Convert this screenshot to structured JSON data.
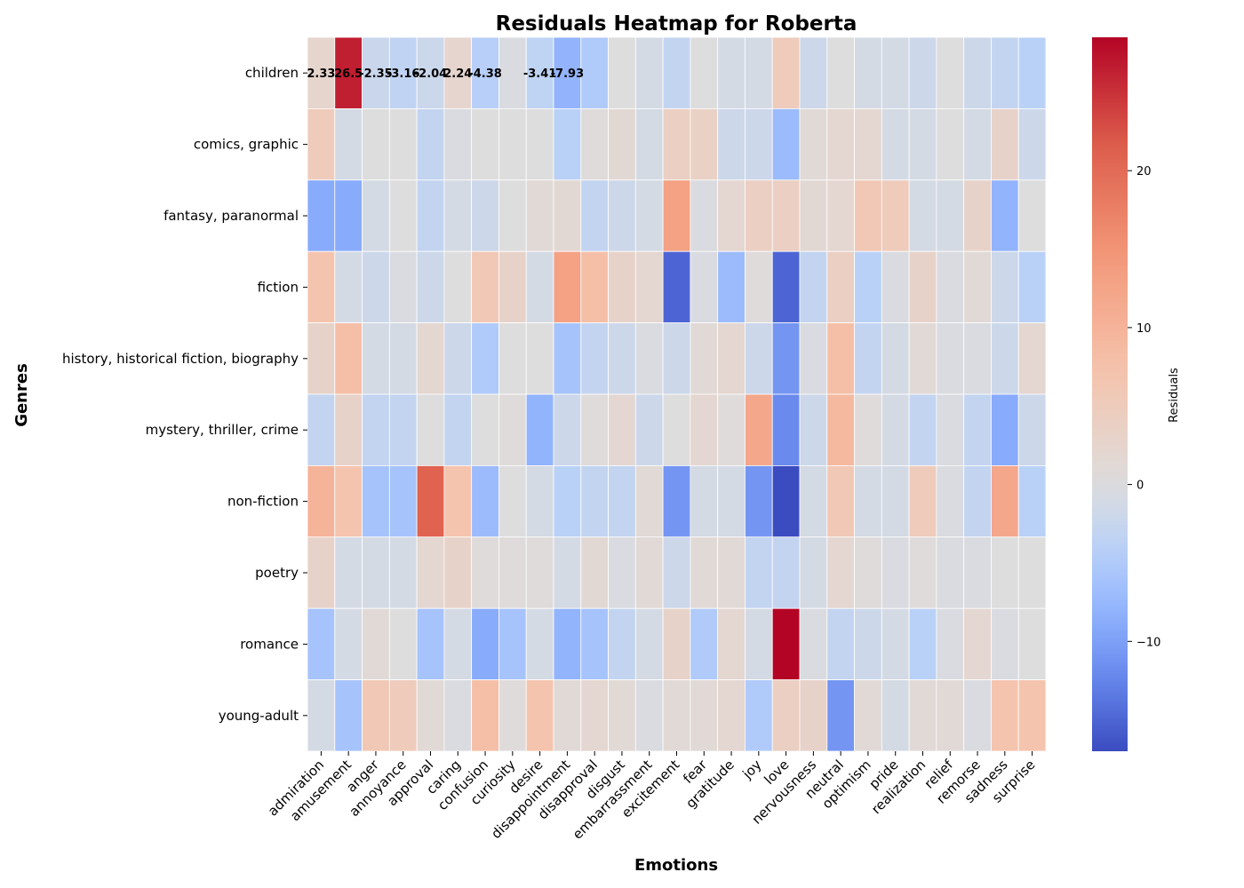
{
  "chart_data": {
    "type": "heatmap",
    "title": "Residuals Heatmap for Roberta",
    "xlabel": "Emotions",
    "ylabel": "Genres",
    "colorbar_label": "Residuals",
    "colormap": "coolwarm",
    "color_range": [
      -17,
      28.5
    ],
    "colorbar_ticks": [
      -10,
      0,
      10,
      20
    ],
    "columns": [
      "admiration",
      "amusement",
      "anger",
      "annoyance",
      "approval",
      "caring",
      "confusion",
      "curiosity",
      "desire",
      "disappointment",
      "disapproval",
      "disgust",
      "embarrassment",
      "excitement",
      "fear",
      "gratitude",
      "joy",
      "love",
      "nervousness",
      "neutral",
      "optimism",
      "pride",
      "realization",
      "relief",
      "remorse",
      "sadness",
      "surprise"
    ],
    "rows": [
      "children",
      "comics, graphic",
      "fantasy, paranormal",
      "fiction",
      "history, historical fiction, biography",
      "mystery, thriller, crime",
      "non-fiction",
      "poetry",
      "romance",
      "young-adult"
    ],
    "values": [
      [
        2.33,
        26.5,
        -2.35,
        -3.16,
        -2.04,
        2.24,
        -4.38,
        -0.5,
        -3.41,
        -7.93,
        -5,
        0,
        -1,
        -3,
        0,
        -1,
        -1,
        5,
        -2,
        0,
        -1,
        -1,
        -2,
        0,
        -2,
        -3,
        -4
      ],
      [
        5,
        -1,
        0,
        0,
        -3,
        -0.5,
        0,
        0,
        0,
        -4,
        0.5,
        1.5,
        -1,
        4,
        3.5,
        -2,
        -2,
        -7,
        1,
        2,
        2,
        -1,
        -1,
        0,
        -1,
        3,
        -2
      ],
      [
        -9,
        -9,
        -1,
        0,
        -3,
        -1,
        -2,
        0,
        1,
        1.5,
        -3,
        -2,
        -1,
        13,
        -0.5,
        2,
        4,
        4,
        1.5,
        2,
        6,
        5,
        -1,
        -1,
        3,
        -8,
        0
      ],
      [
        7,
        -1,
        -2,
        -0.5,
        -2,
        0,
        6,
        3,
        -1,
        13,
        8,
        3,
        2,
        -15,
        -0.5,
        -7,
        0.5,
        -15,
        -3,
        4,
        -4,
        -0.5,
        3,
        -0.5,
        1,
        -2,
        -4
      ],
      [
        3,
        8,
        -1,
        -1,
        2,
        -2,
        -5,
        0,
        0,
        -6,
        -3,
        -2,
        -0.5,
        -2,
        1,
        2,
        -2,
        -11,
        -0.5,
        8,
        -3,
        -1,
        1,
        -0.5,
        -0.5,
        -2,
        2
      ],
      [
        -3,
        3,
        -3,
        -3,
        0,
        -3,
        0,
        0.5,
        -8,
        -2,
        0.5,
        2,
        -2,
        0,
        2,
        0.5,
        12,
        -12,
        -2,
        9,
        0.5,
        -1,
        -3,
        -0.5,
        -3,
        -9,
        -2
      ],
      [
        10,
        7,
        -6,
        -6,
        21,
        7,
        -7,
        0,
        -1,
        -4,
        -3,
        -3,
        1,
        -11,
        -1,
        -1,
        -11,
        -17,
        -1,
        6,
        -1,
        -1,
        5,
        -0.5,
        -3,
        12,
        -4
      ],
      [
        3,
        -1,
        -1,
        -1,
        2,
        3,
        0.5,
        0.5,
        0.5,
        -1,
        1.5,
        -0.5,
        1,
        -2,
        1,
        1,
        -3,
        -3,
        -1,
        2,
        0.5,
        -0.5,
        0.5,
        -0.5,
        -0.5,
        0,
        0
      ],
      [
        -6,
        -1,
        1,
        0,
        -6,
        -1,
        -9,
        -6,
        -1,
        -8,
        -6,
        -3,
        -1,
        3,
        -5,
        2,
        -1,
        28.5,
        -0.5,
        -3,
        -2,
        -1,
        -4,
        -0.5,
        2,
        -0.5,
        0
      ],
      [
        -1,
        -6,
        6,
        5,
        1,
        -0.5,
        8,
        0.5,
        7,
        1,
        2,
        1,
        -0.5,
        1,
        1,
        2,
        -5,
        4,
        3,
        -11,
        1,
        -1,
        1,
        1,
        -0.5,
        7,
        7
      ]
    ],
    "annotated_row": "children",
    "annotations": [
      {
        "row": 0,
        "col": 0,
        "text": "2.33"
      },
      {
        "row": 0,
        "col": 1,
        "text": "26.5"
      },
      {
        "row": 0,
        "col": 2,
        "text": "-2.35"
      },
      {
        "row": 0,
        "col": 3,
        "text": "-3.16"
      },
      {
        "row": 0,
        "col": 4,
        "text": "-2.04"
      },
      {
        "row": 0,
        "col": 5,
        "text": "2.24"
      },
      {
        "row": 0,
        "col": 6,
        "text": "-4.38"
      },
      {
        "row": 0,
        "col": 8,
        "text": "-3.41"
      },
      {
        "row": 0,
        "col": 9,
        "text": "-7.93"
      }
    ],
    "grid": false
  }
}
